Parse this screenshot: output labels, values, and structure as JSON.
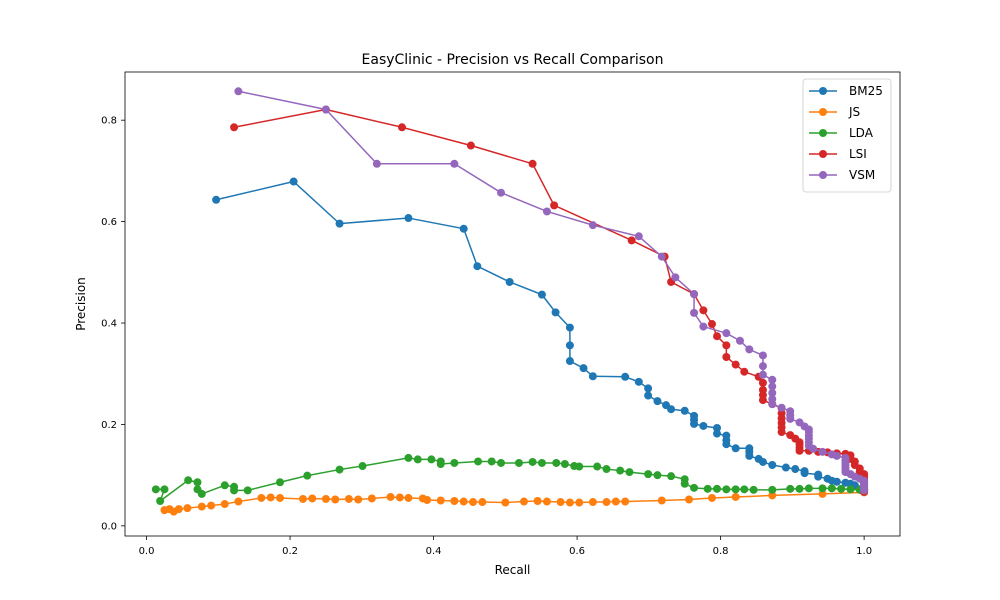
{
  "chart_data": {
    "type": "line",
    "title": "EasyClinic - Precision vs Recall Comparison",
    "xlabel": "Recall",
    "ylabel": "Precision",
    "xlim": [
      -0.03,
      1.05
    ],
    "ylim": [
      -0.02,
      0.895
    ],
    "xticks": [
      0.0,
      0.2,
      0.4,
      0.6,
      0.8,
      1.0
    ],
    "xtick_labels": [
      "0.0",
      "0.2",
      "0.4",
      "0.6",
      "0.8",
      "1.0"
    ],
    "yticks": [
      0.0,
      0.2,
      0.4,
      0.6,
      0.8
    ],
    "ytick_labels": [
      "0.0",
      "0.2",
      "0.4",
      "0.6",
      "0.8"
    ],
    "grid": false,
    "legend_position": "top-right",
    "series": [
      {
        "name": "BM25",
        "color": "#1f77b4",
        "points": [
          [
            0.097,
            0.643
          ],
          [
            0.205,
            0.679
          ],
          [
            0.269,
            0.596
          ],
          [
            0.365,
            0.607
          ],
          [
            0.442,
            0.586
          ],
          [
            0.461,
            0.512
          ],
          [
            0.506,
            0.481
          ],
          [
            0.551,
            0.456
          ],
          [
            0.57,
            0.421
          ],
          [
            0.59,
            0.391
          ],
          [
            0.59,
            0.356
          ],
          [
            0.59,
            0.325
          ],
          [
            0.609,
            0.311
          ],
          [
            0.622,
            0.295
          ],
          [
            0.667,
            0.294
          ],
          [
            0.686,
            0.284
          ],
          [
            0.699,
            0.271
          ],
          [
            0.699,
            0.257
          ],
          [
            0.712,
            0.246
          ],
          [
            0.724,
            0.238
          ],
          [
            0.731,
            0.23
          ],
          [
            0.75,
            0.227
          ],
          [
            0.763,
            0.217
          ],
          [
            0.763,
            0.209
          ],
          [
            0.763,
            0.201
          ],
          [
            0.776,
            0.197
          ],
          [
            0.795,
            0.193
          ],
          [
            0.795,
            0.182
          ],
          [
            0.808,
            0.178
          ],
          [
            0.808,
            0.169
          ],
          [
            0.808,
            0.161
          ],
          [
            0.821,
            0.153
          ],
          [
            0.84,
            0.153
          ],
          [
            0.84,
            0.146
          ],
          [
            0.84,
            0.138
          ],
          [
            0.853,
            0.132
          ],
          [
            0.859,
            0.126
          ],
          [
            0.872,
            0.12
          ],
          [
            0.891,
            0.115
          ],
          [
            0.904,
            0.112
          ],
          [
            0.917,
            0.108
          ],
          [
            0.917,
            0.104
          ],
          [
            0.936,
            0.101
          ],
          [
            0.936,
            0.097
          ],
          [
            0.949,
            0.093
          ],
          [
            0.955,
            0.089
          ],
          [
            0.962,
            0.087
          ],
          [
            0.974,
            0.085
          ],
          [
            0.981,
            0.083
          ],
          [
            0.987,
            0.08
          ],
          [
            1.0,
            0.077
          ],
          [
            1.0,
            0.074
          ],
          [
            1.0,
            0.07
          ]
        ]
      },
      {
        "name": "JS",
        "color": "#ff7f0e",
        "points": [
          [
            0.025,
            0.031
          ],
          [
            0.032,
            0.033
          ],
          [
            0.038,
            0.028
          ],
          [
            0.045,
            0.033
          ],
          [
            0.057,
            0.035
          ],
          [
            0.077,
            0.038
          ],
          [
            0.09,
            0.04
          ],
          [
            0.109,
            0.043
          ],
          [
            0.128,
            0.048
          ],
          [
            0.16,
            0.055
          ],
          [
            0.173,
            0.056
          ],
          [
            0.186,
            0.055
          ],
          [
            0.218,
            0.053
          ],
          [
            0.231,
            0.054
          ],
          [
            0.25,
            0.053
          ],
          [
            0.263,
            0.052
          ],
          [
            0.282,
            0.053
          ],
          [
            0.295,
            0.052
          ],
          [
            0.314,
            0.054
          ],
          [
            0.34,
            0.057
          ],
          [
            0.353,
            0.056
          ],
          [
            0.365,
            0.055
          ],
          [
            0.385,
            0.054
          ],
          [
            0.391,
            0.051
          ],
          [
            0.41,
            0.05
          ],
          [
            0.429,
            0.049
          ],
          [
            0.442,
            0.048
          ],
          [
            0.455,
            0.047
          ],
          [
            0.468,
            0.047
          ],
          [
            0.5,
            0.046
          ],
          [
            0.526,
            0.048
          ],
          [
            0.545,
            0.049
          ],
          [
            0.558,
            0.048
          ],
          [
            0.577,
            0.047
          ],
          [
            0.59,
            0.046
          ],
          [
            0.603,
            0.046
          ],
          [
            0.622,
            0.047
          ],
          [
            0.641,
            0.047
          ],
          [
            0.654,
            0.048
          ],
          [
            0.667,
            0.048
          ],
          [
            0.718,
            0.05
          ],
          [
            0.756,
            0.052
          ],
          [
            0.788,
            0.055
          ],
          [
            0.821,
            0.057
          ],
          [
            0.872,
            0.06
          ],
          [
            0.942,
            0.063
          ],
          [
            1.0,
            0.066
          ]
        ]
      },
      {
        "name": "LDA",
        "color": "#2ca02c",
        "points": [
          [
            0.013,
            0.072
          ],
          [
            0.025,
            0.072
          ],
          [
            0.019,
            0.049
          ],
          [
            0.058,
            0.09
          ],
          [
            0.071,
            0.086
          ],
          [
            0.071,
            0.072
          ],
          [
            0.077,
            0.063
          ],
          [
            0.109,
            0.08
          ],
          [
            0.122,
            0.077
          ],
          [
            0.122,
            0.07
          ],
          [
            0.141,
            0.07
          ],
          [
            0.186,
            0.086
          ],
          [
            0.224,
            0.099
          ],
          [
            0.269,
            0.111
          ],
          [
            0.301,
            0.118
          ],
          [
            0.365,
            0.134
          ],
          [
            0.378,
            0.131
          ],
          [
            0.397,
            0.131
          ],
          [
            0.41,
            0.127
          ],
          [
            0.41,
            0.122
          ],
          [
            0.429,
            0.124
          ],
          [
            0.462,
            0.127
          ],
          [
            0.481,
            0.127
          ],
          [
            0.494,
            0.124
          ],
          [
            0.519,
            0.124
          ],
          [
            0.538,
            0.126
          ],
          [
            0.551,
            0.124
          ],
          [
            0.571,
            0.124
          ],
          [
            0.583,
            0.122
          ],
          [
            0.596,
            0.118
          ],
          [
            0.603,
            0.117
          ],
          [
            0.628,
            0.117
          ],
          [
            0.641,
            0.112
          ],
          [
            0.66,
            0.109
          ],
          [
            0.673,
            0.106
          ],
          [
            0.699,
            0.102
          ],
          [
            0.712,
            0.1
          ],
          [
            0.731,
            0.098
          ],
          [
            0.75,
            0.092
          ],
          [
            0.75,
            0.083
          ],
          [
            0.763,
            0.075
          ],
          [
            0.782,
            0.073
          ],
          [
            0.795,
            0.073
          ],
          [
            0.808,
            0.072
          ],
          [
            0.821,
            0.072
          ],
          [
            0.833,
            0.072
          ],
          [
            0.846,
            0.071
          ],
          [
            0.872,
            0.071
          ],
          [
            0.897,
            0.073
          ],
          [
            0.91,
            0.073
          ],
          [
            0.923,
            0.074
          ],
          [
            0.942,
            0.074
          ],
          [
            0.955,
            0.074
          ],
          [
            0.968,
            0.073
          ],
          [
            0.981,
            0.072
          ],
          [
            0.994,
            0.071
          ],
          [
            1.0,
            0.071
          ]
        ]
      },
      {
        "name": "LSI",
        "color": "#d62728",
        "points": [
          [
            0.122,
            0.786
          ],
          [
            0.25,
            0.821
          ],
          [
            0.356,
            0.786
          ],
          [
            0.452,
            0.75
          ],
          [
            0.538,
            0.714
          ],
          [
            0.568,
            0.632
          ],
          [
            0.676,
            0.563
          ],
          [
            0.722,
            0.531
          ],
          [
            0.731,
            0.481
          ],
          [
            0.763,
            0.457
          ],
          [
            0.776,
            0.425
          ],
          [
            0.788,
            0.398
          ],
          [
            0.795,
            0.374
          ],
          [
            0.808,
            0.356
          ],
          [
            0.808,
            0.333
          ],
          [
            0.821,
            0.318
          ],
          [
            0.833,
            0.304
          ],
          [
            0.853,
            0.294
          ],
          [
            0.859,
            0.282
          ],
          [
            0.859,
            0.268
          ],
          [
            0.859,
            0.258
          ],
          [
            0.859,
            0.248
          ],
          [
            0.872,
            0.24
          ],
          [
            0.885,
            0.232
          ],
          [
            0.885,
            0.222
          ],
          [
            0.885,
            0.212
          ],
          [
            0.885,
            0.203
          ],
          [
            0.885,
            0.194
          ],
          [
            0.885,
            0.185
          ],
          [
            0.897,
            0.179
          ],
          [
            0.904,
            0.172
          ],
          [
            0.91,
            0.165
          ],
          [
            0.91,
            0.16
          ],
          [
            0.91,
            0.154
          ],
          [
            0.91,
            0.148
          ],
          [
            0.923,
            0.148
          ],
          [
            0.936,
            0.146
          ],
          [
            0.949,
            0.145
          ],
          [
            0.962,
            0.143
          ],
          [
            0.974,
            0.142
          ],
          [
            0.981,
            0.139
          ],
          [
            0.981,
            0.132
          ],
          [
            0.987,
            0.127
          ],
          [
            0.987,
            0.12
          ],
          [
            0.994,
            0.113
          ],
          [
            0.994,
            0.107
          ],
          [
            1.0,
            0.102
          ],
          [
            1.0,
            0.097
          ],
          [
            1.0,
            0.093
          ],
          [
            1.0,
            0.088
          ],
          [
            1.0,
            0.083
          ],
          [
            1.0,
            0.078
          ],
          [
            1.0,
            0.072
          ],
          [
            1.0,
            0.067
          ]
        ]
      },
      {
        "name": "VSM",
        "color": "#9467bd",
        "points": [
          [
            0.128,
            0.857
          ],
          [
            0.25,
            0.821
          ],
          [
            0.321,
            0.714
          ],
          [
            0.429,
            0.714
          ],
          [
            0.494,
            0.657
          ],
          [
            0.558,
            0.62
          ],
          [
            0.622,
            0.593
          ],
          [
            0.686,
            0.571
          ],
          [
            0.718,
            0.531
          ],
          [
            0.737,
            0.49
          ],
          [
            0.763,
            0.457
          ],
          [
            0.763,
            0.42
          ],
          [
            0.776,
            0.393
          ],
          [
            0.808,
            0.38
          ],
          [
            0.827,
            0.365
          ],
          [
            0.84,
            0.348
          ],
          [
            0.859,
            0.336
          ],
          [
            0.859,
            0.315
          ],
          [
            0.859,
            0.298
          ],
          [
            0.872,
            0.288
          ],
          [
            0.872,
            0.275
          ],
          [
            0.872,
            0.262
          ],
          [
            0.872,
            0.25
          ],
          [
            0.872,
            0.24
          ],
          [
            0.885,
            0.233
          ],
          [
            0.897,
            0.226
          ],
          [
            0.897,
            0.218
          ],
          [
            0.897,
            0.211
          ],
          [
            0.91,
            0.204
          ],
          [
            0.917,
            0.196
          ],
          [
            0.923,
            0.19
          ],
          [
            0.923,
            0.185
          ],
          [
            0.923,
            0.178
          ],
          [
            0.923,
            0.172
          ],
          [
            0.923,
            0.165
          ],
          [
            0.923,
            0.158
          ],
          [
            0.929,
            0.152
          ],
          [
            0.942,
            0.146
          ],
          [
            0.955,
            0.141
          ],
          [
            0.962,
            0.138
          ],
          [
            0.974,
            0.134
          ],
          [
            0.974,
            0.129
          ],
          [
            0.974,
            0.124
          ],
          [
            0.974,
            0.119
          ],
          [
            0.974,
            0.115
          ],
          [
            0.974,
            0.111
          ],
          [
            0.974,
            0.106
          ],
          [
            0.981,
            0.102
          ],
          [
            0.987,
            0.097
          ],
          [
            0.994,
            0.093
          ],
          [
            1.0,
            0.089
          ],
          [
            1.0,
            0.085
          ],
          [
            1.0,
            0.081
          ],
          [
            1.0,
            0.077
          ],
          [
            1.0,
            0.073
          ],
          [
            1.0,
            0.07
          ]
        ]
      }
    ]
  }
}
